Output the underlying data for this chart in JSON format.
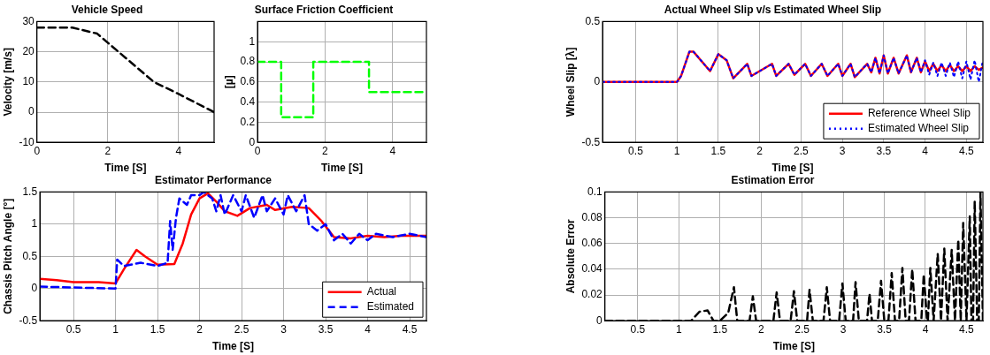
{
  "chart_data": [
    {
      "type": "line",
      "title": "Vehicle Speed",
      "xlabel": "Time [S]",
      "ylabel": "Velocity [m/s]",
      "xlim": [
        0,
        5
      ],
      "xticks": [
        0,
        2,
        4
      ],
      "ylim": [
        -10,
        30
      ],
      "yticks": [
        -10,
        0,
        10,
        20,
        30
      ],
      "grid": true,
      "line_style": "dashed",
      "legend": false,
      "series": [
        {
          "color": "#000000",
          "x": [
            0,
            1,
            1.7,
            2,
            2.5,
            3,
            3.3,
            4,
            4.5,
            5
          ],
          "values": [
            28,
            28,
            26,
            23,
            18,
            13,
            10,
            6,
            3,
            0
          ]
        }
      ]
    },
    {
      "type": "step",
      "title": "Surface Friction Coefficient",
      "xlabel": "Time [S]",
      "ylabel": "[µ]",
      "xlim": [
        0,
        5
      ],
      "xticks": [
        0,
        2,
        4
      ],
      "ylim": [
        0,
        1.2
      ],
      "yticks": [
        0,
        0.2,
        0.4,
        0.6,
        0.8,
        1
      ],
      "grid": true,
      "line_style": "dashed",
      "legend": false,
      "series": [
        {
          "color": "#00ff00",
          "x": [
            0,
            0.7,
            1.65,
            3.3,
            5
          ],
          "values": [
            0.8,
            0.25,
            0.8,
            0.5,
            0.5
          ]
        }
      ]
    },
    {
      "type": "line",
      "title": "Estimator Performance",
      "xlabel": "Time [S]",
      "ylabel": "Chassis Pitch Angle [°]",
      "xlim": [
        0.1,
        4.7
      ],
      "xticks": [
        0.5,
        1,
        1.5,
        2,
        2.5,
        3,
        3.5,
        4,
        4.5
      ],
      "ylim": [
        -0.5,
        1.5
      ],
      "yticks": [
        -0.5,
        0,
        0.5,
        1,
        1.5
      ],
      "grid": true,
      "legend": "bottom right",
      "series": [
        {
          "name": "Actual",
          "color": "#ff0000",
          "line_style": "solid",
          "x": [
            0.1,
            0.3,
            0.5,
            0.8,
            1,
            1.1,
            1.25,
            1.35,
            1.5,
            1.7,
            1.8,
            1.9,
            2,
            2.1,
            2.2,
            2.3,
            2.45,
            2.6,
            2.8,
            2.9,
            3.1,
            3.3,
            3.45,
            3.6,
            3.8,
            4,
            4.2,
            4.4,
            4.7
          ],
          "values": [
            0.15,
            0.13,
            0.1,
            0.1,
            0.08,
            0.3,
            0.6,
            0.5,
            0.37,
            0.38,
            0.7,
            1.15,
            1.4,
            1.48,
            1.35,
            1.2,
            1.13,
            1.25,
            1.3,
            1.22,
            1.27,
            1.25,
            1.05,
            0.8,
            0.78,
            0.82,
            0.8,
            0.82,
            0.82
          ]
        },
        {
          "name": "Estimated",
          "color": "#0000ff",
          "line_style": "dashed",
          "x": [
            0.1,
            1,
            1.02,
            1.1,
            1.3,
            1.5,
            1.62,
            1.65,
            1.68,
            1.72,
            1.76,
            1.85,
            1.9,
            2,
            2.05,
            2.15,
            2.2,
            2.25,
            2.3,
            2.4,
            2.5,
            2.55,
            2.65,
            2.75,
            2.8,
            2.9,
            3,
            3.05,
            3.15,
            3.25,
            3.3,
            3.4,
            3.5,
            3.6,
            3.7,
            3.8,
            3.9,
            4,
            4.1,
            4.3,
            4.5,
            4.7
          ],
          "values": [
            0.03,
            0,
            0.45,
            0.35,
            0.4,
            0.35,
            0.4,
            1.05,
            0.6,
            1.1,
            1.4,
            1.3,
            1.45,
            1.45,
            1.5,
            1.4,
            1.2,
            1.45,
            1.15,
            1.45,
            1.2,
            1.45,
            1.1,
            1.45,
            1.2,
            1.4,
            1.15,
            1.45,
            1.2,
            1.45,
            1,
            0.9,
            1,
            0.75,
            0.85,
            0.7,
            0.85,
            0.75,
            0.85,
            0.8,
            0.85,
            0.8
          ]
        }
      ]
    },
    {
      "type": "line",
      "title": "Actual Wheel Slip v/s Estimated Wheel Slip",
      "xlabel": "Time [S]",
      "ylabel": "Wheel Slip [λ]",
      "xlim": [
        0.1,
        4.7
      ],
      "xticks": [
        0.5,
        1,
        1.5,
        2,
        2.5,
        3,
        3.5,
        4,
        4.5
      ],
      "ylim": [
        -0.5,
        0.5
      ],
      "yticks": [
        -0.5,
        0,
        0.5
      ],
      "grid": true,
      "legend": "bottom right",
      "series": [
        {
          "name": "Reference Wheel Slip",
          "color": "#ff0000",
          "line_style": "solid",
          "x": [
            0.1,
            1,
            1.05,
            1.15,
            1.2,
            1.4,
            1.5,
            1.6,
            1.68,
            1.85,
            1.9,
            2.15,
            2.2,
            2.35,
            2.42,
            2.55,
            2.62,
            2.75,
            2.82,
            2.95,
            3,
            3.1,
            3.15,
            3.3,
            3.35,
            3.4,
            3.45,
            3.5,
            3.55,
            3.62,
            3.68,
            3.78,
            3.83,
            3.9,
            3.95,
            4,
            4.05,
            4.1,
            4.15,
            4.2,
            4.25,
            4.3,
            4.35,
            4.4,
            4.45,
            4.5,
            4.55,
            4.6,
            4.65,
            4.7
          ],
          "values": [
            0,
            0,
            0.05,
            0.25,
            0.25,
            0.09,
            0.23,
            0.18,
            0.03,
            0.15,
            0.05,
            0.15,
            0.05,
            0.15,
            0.06,
            0.15,
            0.05,
            0.15,
            0.05,
            0.15,
            0.05,
            0.15,
            0.04,
            0.15,
            0.08,
            0.2,
            0.07,
            0.22,
            0.07,
            0.2,
            0.07,
            0.22,
            0.08,
            0.2,
            0.08,
            0.17,
            0.09,
            0.15,
            0.09,
            0.14,
            0.09,
            0.14,
            0.09,
            0.13,
            0.09,
            0.13,
            0.09,
            0.13,
            0.1,
            0.12
          ]
        },
        {
          "name": "Estimated Wheel Slip",
          "color": "#0000ff",
          "line_style": "dotted",
          "x": [
            0.1,
            1,
            1.05,
            1.15,
            1.2,
            1.4,
            1.5,
            1.6,
            1.68,
            1.85,
            1.9,
            2.15,
            2.2,
            2.35,
            2.42,
            2.55,
            2.62,
            2.75,
            2.82,
            2.95,
            3,
            3.1,
            3.15,
            3.3,
            3.35,
            3.4,
            3.45,
            3.5,
            3.55,
            3.62,
            3.68,
            3.78,
            3.83,
            3.9,
            3.95,
            4,
            4.05,
            4.1,
            4.15,
            4.2,
            4.25,
            4.3,
            4.35,
            4.4,
            4.45,
            4.5,
            4.55,
            4.6,
            4.65,
            4.7
          ],
          "values": [
            0,
            0,
            0.05,
            0.25,
            0.25,
            0.09,
            0.23,
            0.18,
            0.03,
            0.15,
            0.05,
            0.15,
            0.05,
            0.15,
            0.06,
            0.15,
            0.05,
            0.15,
            0.05,
            0.15,
            0.05,
            0.15,
            0.04,
            0.15,
            0.08,
            0.2,
            0.07,
            0.22,
            0.07,
            0.2,
            0.07,
            0.22,
            0.08,
            0.2,
            0.08,
            0.18,
            0.06,
            0.16,
            0.05,
            0.16,
            0.05,
            0.16,
            0.04,
            0.17,
            0.03,
            0.17,
            0.02,
            0.18,
            0,
            0.18
          ]
        }
      ]
    },
    {
      "type": "line",
      "title": "Estimation Error",
      "xlabel": "Time [S]",
      "ylabel": "Absolute Error",
      "xlim": [
        0.1,
        4.7
      ],
      "xticks": [
        0.5,
        1,
        1.5,
        2,
        2.5,
        3,
        3.5,
        4,
        4.5
      ],
      "ylim": [
        0,
        0.1
      ],
      "yticks": [
        0,
        0.02,
        0.04,
        0.06,
        0.08,
        0.1
      ],
      "grid": true,
      "line_style": "dashed",
      "legend": false,
      "series": [
        {
          "color": "#000000",
          "x": [
            0.1,
            1.15,
            1.25,
            1.35,
            1.42,
            1.5,
            1.6,
            1.67,
            1.71,
            1.86,
            1.9,
            1.94,
            2.15,
            2.19,
            2.23,
            2.36,
            2.4,
            2.44,
            2.56,
            2.59,
            2.63,
            2.76,
            2.8,
            2.84,
            2.95,
            2.99,
            3.03,
            3.12,
            3.15,
            3.19,
            3.29,
            3.32,
            3.35,
            3.42,
            3.46,
            3.5,
            3.55,
            3.59,
            3.63,
            3.68,
            3.72,
            3.76,
            3.8,
            3.84,
            3.88,
            3.95,
            3.98,
            4.02,
            4.03,
            4.06,
            4.1,
            4.15,
            4.19,
            4.23,
            4.27,
            4.32,
            4.36,
            4.4,
            4.43,
            4.46,
            4.5,
            4.54,
            4.56,
            4.58,
            4.6,
            4.63,
            4.65,
            4.67,
            4.7
          ],
          "values": [
            0,
            0,
            0.007,
            0.008,
            0,
            0,
            0.006,
            0.026,
            0,
            0,
            0.019,
            0,
            0,
            0.022,
            0,
            0,
            0.023,
            0,
            0,
            0.024,
            0,
            0,
            0.026,
            0,
            0,
            0.029,
            0,
            0,
            0.03,
            0,
            0,
            0.021,
            0,
            0,
            0.031,
            0,
            0,
            0.037,
            0,
            0,
            0.041,
            0,
            0,
            0.04,
            0,
            0,
            0.036,
            0,
            0,
            0.041,
            0,
            0.052,
            0,
            0.056,
            0,
            0.055,
            0,
            0.063,
            0,
            0.076,
            0,
            0.081,
            0,
            0,
            0.093,
            0,
            0,
            0.1,
            0
          ]
        }
      ]
    }
  ]
}
